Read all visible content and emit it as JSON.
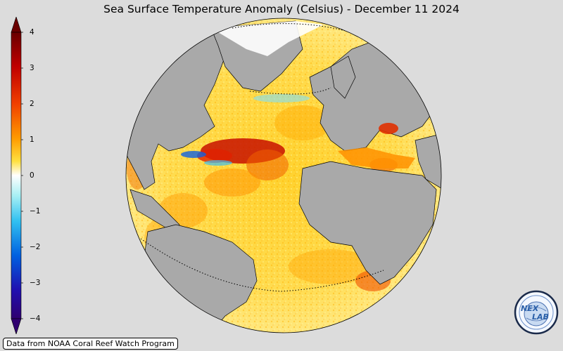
{
  "title": "Sea Surface Temperature Anomaly (Celsius) - December 11 2024",
  "colorbar": {
    "min": -4,
    "max": 4,
    "ticks": [
      {
        "value": 4,
        "label": "4"
      },
      {
        "value": 3,
        "label": "3"
      },
      {
        "value": 2,
        "label": "2"
      },
      {
        "value": 1,
        "label": "1"
      },
      {
        "value": 0,
        "label": "0"
      },
      {
        "value": -1,
        "label": "−1"
      },
      {
        "value": -2,
        "label": "−2"
      },
      {
        "value": -3,
        "label": "−3"
      },
      {
        "value": -4,
        "label": "−4"
      }
    ],
    "colors": [
      "#1a0070",
      "#0040d0",
      "#00a8e8",
      "#b0f4f4",
      "#ffffff",
      "#fff060",
      "#ffb000",
      "#f05000",
      "#b00000",
      "#600000"
    ]
  },
  "credit": "Data from NOAA Coral Reef Watch Program",
  "logo_text": "NE LAB",
  "map": {
    "ocean_color": "#ffd83a",
    "land_color": "#a9a9a9",
    "background_color": "#dcdcdc"
  }
}
